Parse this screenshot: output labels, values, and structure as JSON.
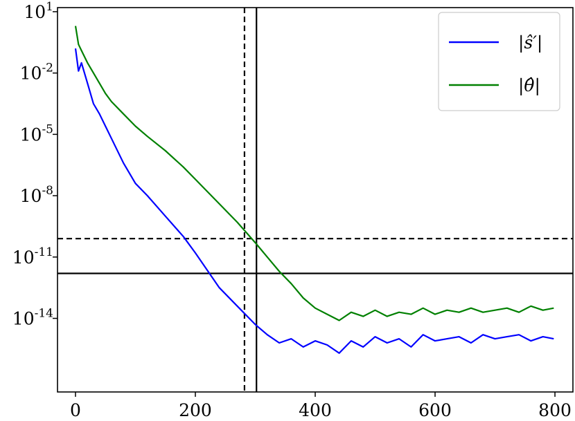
{
  "chart_data": {
    "type": "line",
    "title": "",
    "xlabel": "",
    "ylabel": "",
    "xlim": [
      -30,
      830
    ],
    "x_ticks": [
      "0",
      "200",
      "400",
      "600",
      "800"
    ],
    "x_tick_values": [
      0,
      200,
      400,
      600,
      800
    ],
    "yscale": "log",
    "ylim_exp": [
      -17.6,
      1.2
    ],
    "y_ticks": [
      {
        "base": "10",
        "exp": "1",
        "exp_value": 1
      },
      {
        "base": "10",
        "exp": "-2",
        "exp_value": -2
      },
      {
        "base": "10",
        "exp": "-5",
        "exp_value": -5
      },
      {
        "base": "10",
        "exp": "-8",
        "exp_value": -8
      },
      {
        "base": "10",
        "exp": "-11",
        "exp_value": -11
      },
      {
        "base": "10",
        "exp": "-14",
        "exp_value": -14
      }
    ],
    "grid": false,
    "legend_position": "top-right",
    "reference_lines": [
      {
        "orientation": "vertical",
        "x": 282,
        "style": "dashed"
      },
      {
        "orientation": "vertical",
        "x": 302,
        "style": "solid"
      },
      {
        "orientation": "horizontal",
        "y_exp": -10.1,
        "style": "dashed"
      },
      {
        "orientation": "horizontal",
        "y_exp": -11.8,
        "style": "solid"
      }
    ],
    "series": [
      {
        "name": "|ŝ′|",
        "color": "#0000ff",
        "x": [
          0,
          5,
          10,
          20,
          30,
          40,
          50,
          60,
          80,
          100,
          120,
          150,
          180,
          200,
          240,
          270,
          300,
          320,
          340,
          360,
          380,
          400,
          420,
          440,
          460,
          480,
          500,
          520,
          540,
          560,
          580,
          600,
          620,
          640,
          660,
          680,
          700,
          720,
          740,
          760,
          780,
          798
        ],
        "y_exp": [
          -0.8,
          -1.9,
          -1.5,
          -2.5,
          -3.5,
          -4.0,
          -4.6,
          -5.2,
          -6.4,
          -7.4,
          -8.0,
          -9.0,
          -10.0,
          -10.8,
          -12.5,
          -13.4,
          -14.3,
          -14.8,
          -15.2,
          -15.0,
          -15.4,
          -15.1,
          -15.3,
          -15.7,
          -15.1,
          -15.4,
          -14.9,
          -15.2,
          -15.0,
          -15.4,
          -14.8,
          -15.1,
          -15.0,
          -14.9,
          -15.2,
          -14.8,
          -15.0,
          -14.9,
          -14.8,
          -15.1,
          -14.9,
          -15.0
        ]
      },
      {
        "name": "|θ̂|",
        "color": "#008000",
        "x": [
          0,
          5,
          10,
          20,
          30,
          40,
          50,
          60,
          80,
          100,
          120,
          150,
          180,
          200,
          240,
          270,
          300,
          320,
          340,
          360,
          380,
          400,
          420,
          440,
          460,
          480,
          500,
          520,
          540,
          560,
          580,
          600,
          620,
          640,
          660,
          680,
          700,
          720,
          740,
          760,
          780,
          798
        ],
        "y_exp": [
          0.3,
          -0.6,
          -0.9,
          -1.5,
          -2.0,
          -2.5,
          -3.0,
          -3.4,
          -4.0,
          -4.6,
          -5.1,
          -5.8,
          -6.6,
          -7.2,
          -8.4,
          -9.3,
          -10.3,
          -11.0,
          -11.7,
          -12.3,
          -13.0,
          -13.5,
          -13.8,
          -14.1,
          -13.7,
          -13.9,
          -13.6,
          -13.9,
          -13.7,
          -13.8,
          -13.5,
          -13.8,
          -13.6,
          -13.7,
          -13.5,
          -13.7,
          -13.6,
          -13.5,
          -13.7,
          -13.4,
          -13.6,
          -13.5
        ]
      }
    ]
  }
}
